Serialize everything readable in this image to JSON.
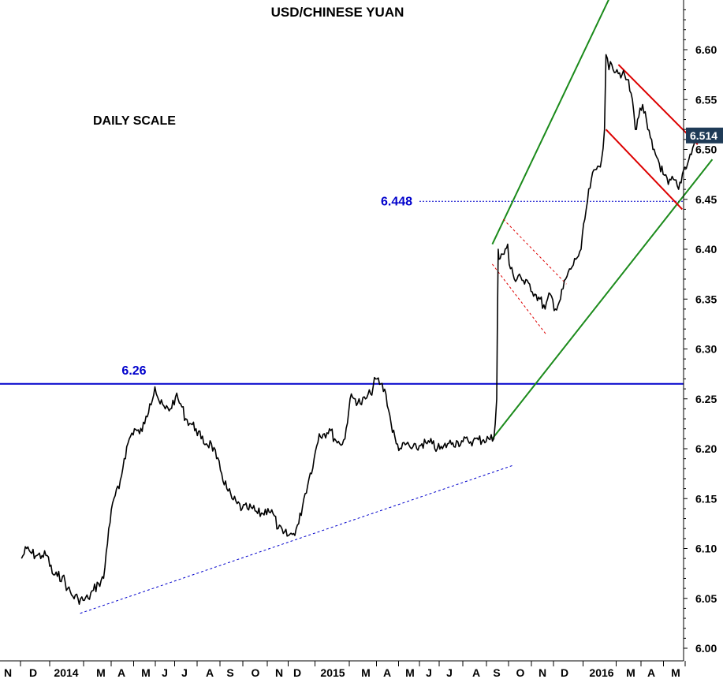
{
  "chart_data": {
    "type": "line",
    "title": "USD/CHINESE YUAN",
    "annotation": "DAILY SCALE",
    "y_axis": {
      "side": "right",
      "range": [
        5.995,
        6.67
      ],
      "ticks": [
        "6.00",
        "6.05",
        "6.10",
        "6.15",
        "6.20",
        "6.25",
        "6.30",
        "6.35",
        "6.40",
        "6.45",
        "6.50",
        "6.55",
        "6.60"
      ]
    },
    "x_axis": {
      "tick_labels": [
        "N",
        "D",
        "2014",
        "M",
        "A",
        "M",
        "J",
        "J",
        "A",
        "S",
        "O",
        "N",
        "D",
        "2015",
        "M",
        "A",
        "M",
        "J",
        "J",
        "A",
        "S",
        "O",
        "N",
        "D",
        "2016",
        "M",
        "A",
        "M"
      ]
    },
    "last_value": {
      "label": "6.514",
      "value": 6.514,
      "color": "#1f3b57"
    },
    "levels": [
      {
        "label": "6.26",
        "value": 6.265,
        "style": "solid",
        "color": "#0000cc"
      },
      {
        "label": "6.448",
        "value": 6.448,
        "style": "dotted",
        "color": "#0000cc"
      }
    ],
    "series": [
      {
        "color": "#000000",
        "points": [
          [
            "2013-11-01",
            6.09
          ],
          [
            "2013-11-08",
            6.1
          ],
          [
            "2013-11-15",
            6.095
          ],
          [
            "2013-11-22",
            6.093
          ],
          [
            "2013-11-29",
            6.093
          ],
          [
            "2013-12-06",
            6.093
          ],
          [
            "2013-12-13",
            6.075
          ],
          [
            "2013-12-20",
            6.072
          ],
          [
            "2013-12-27",
            6.072
          ],
          [
            "2014-01-03",
            6.06
          ],
          [
            "2014-01-10",
            6.052
          ],
          [
            "2014-01-17",
            6.05
          ],
          [
            "2014-01-24",
            6.048
          ],
          [
            "2014-01-31",
            6.05
          ],
          [
            "2014-02-07",
            6.058
          ],
          [
            "2014-02-14",
            6.065
          ],
          [
            "2014-02-21",
            6.07
          ],
          [
            "2014-02-28",
            6.12
          ],
          [
            "2014-03-07",
            6.15
          ],
          [
            "2014-03-14",
            6.16
          ],
          [
            "2014-03-21",
            6.19
          ],
          [
            "2014-03-28",
            6.21
          ],
          [
            "2014-04-04",
            6.22
          ],
          [
            "2014-04-11",
            6.215
          ],
          [
            "2014-04-18",
            6.225
          ],
          [
            "2014-04-25",
            6.245
          ],
          [
            "2014-05-02",
            6.262
          ],
          [
            "2014-05-09",
            6.245
          ],
          [
            "2014-05-16",
            6.24
          ],
          [
            "2014-05-23",
            6.24
          ],
          [
            "2014-05-30",
            6.252
          ],
          [
            "2014-06-06",
            6.245
          ],
          [
            "2014-06-13",
            6.23
          ],
          [
            "2014-06-20",
            6.225
          ],
          [
            "2014-06-27",
            6.22
          ],
          [
            "2014-07-04",
            6.21
          ],
          [
            "2014-07-11",
            6.205
          ],
          [
            "2014-07-18",
            6.205
          ],
          [
            "2014-07-25",
            6.19
          ],
          [
            "2014-08-01",
            6.175
          ],
          [
            "2014-08-08",
            6.16
          ],
          [
            "2014-08-15",
            6.15
          ],
          [
            "2014-08-22",
            6.145
          ],
          [
            "2014-08-29",
            6.14
          ],
          [
            "2014-09-05",
            6.14
          ],
          [
            "2014-09-12",
            6.14
          ],
          [
            "2014-09-19",
            6.135
          ],
          [
            "2014-09-26",
            6.135
          ],
          [
            "2014-10-03",
            6.14
          ],
          [
            "2014-10-10",
            6.135
          ],
          [
            "2014-10-17",
            6.12
          ],
          [
            "2014-10-24",
            6.115
          ],
          [
            "2014-10-31",
            6.113
          ],
          [
            "2014-11-07",
            6.115
          ],
          [
            "2014-11-14",
            6.125
          ],
          [
            "2014-11-21",
            6.15
          ],
          [
            "2014-11-28",
            6.17
          ],
          [
            "2014-12-05",
            6.19
          ],
          [
            "2014-12-12",
            6.215
          ],
          [
            "2014-12-19",
            6.215
          ],
          [
            "2014-12-26",
            6.22
          ],
          [
            "2015-01-02",
            6.21
          ],
          [
            "2015-01-09",
            6.205
          ],
          [
            "2015-01-16",
            6.21
          ],
          [
            "2015-01-23",
            6.25
          ],
          [
            "2015-01-30",
            6.25
          ],
          [
            "2015-02-06",
            6.245
          ],
          [
            "2015-02-13",
            6.25
          ],
          [
            "2015-02-20",
            6.255
          ],
          [
            "2015-02-27",
            6.27
          ],
          [
            "2015-03-06",
            6.265
          ],
          [
            "2015-03-13",
            6.255
          ],
          [
            "2015-03-20",
            6.225
          ],
          [
            "2015-03-27",
            6.205
          ],
          [
            "2015-04-03",
            6.2
          ],
          [
            "2015-04-10",
            6.205
          ],
          [
            "2015-04-17",
            6.2
          ],
          [
            "2015-04-24",
            6.2
          ],
          [
            "2015-05-01",
            6.205
          ],
          [
            "2015-05-08",
            6.205
          ],
          [
            "2015-05-15",
            6.205
          ],
          [
            "2015-05-22",
            6.2
          ],
          [
            "2015-05-29",
            6.2
          ],
          [
            "2015-06-05",
            6.205
          ],
          [
            "2015-06-12",
            6.206
          ],
          [
            "2015-06-19",
            6.207
          ],
          [
            "2015-06-26",
            6.207
          ],
          [
            "2015-07-03",
            6.208
          ],
          [
            "2015-07-10",
            6.208
          ],
          [
            "2015-07-17",
            6.209
          ],
          [
            "2015-07-24",
            6.209
          ],
          [
            "2015-07-31",
            6.21
          ],
          [
            "2015-08-07",
            6.21
          ],
          [
            "2015-08-11",
            6.25
          ],
          [
            "2015-08-12",
            6.33
          ],
          [
            "2015-08-13",
            6.4
          ],
          [
            "2015-08-14",
            6.39
          ],
          [
            "2015-08-19",
            6.395
          ],
          [
            "2015-08-21",
            6.395
          ],
          [
            "2015-08-26",
            6.405
          ],
          [
            "2015-08-28",
            6.385
          ],
          [
            "2015-09-04",
            6.37
          ],
          [
            "2015-09-11",
            6.375
          ],
          [
            "2015-09-18",
            6.365
          ],
          [
            "2015-09-25",
            6.365
          ],
          [
            "2015-10-02",
            6.355
          ],
          [
            "2015-10-09",
            6.35
          ],
          [
            "2015-10-16",
            6.34
          ],
          [
            "2015-10-23",
            6.355
          ],
          [
            "2015-10-30",
            6.34
          ],
          [
            "2015-11-06",
            6.35
          ],
          [
            "2015-11-13",
            6.37
          ],
          [
            "2015-11-20",
            6.38
          ],
          [
            "2015-11-27",
            6.39
          ],
          [
            "2015-12-04",
            6.4
          ],
          [
            "2015-12-11",
            6.44
          ],
          [
            "2015-12-18",
            6.47
          ],
          [
            "2015-12-25",
            6.48
          ],
          [
            "2016-01-01",
            6.49
          ],
          [
            "2016-01-05",
            6.52
          ],
          [
            "2016-01-07",
            6.595
          ],
          [
            "2016-01-11",
            6.58
          ],
          [
            "2016-01-15",
            6.585
          ],
          [
            "2016-01-22",
            6.58
          ],
          [
            "2016-01-29",
            6.575
          ],
          [
            "2016-02-05",
            6.57
          ],
          [
            "2016-02-12",
            6.55
          ],
          [
            "2016-02-16",
            6.52
          ],
          [
            "2016-02-19",
            6.53
          ],
          [
            "2016-02-26",
            6.545
          ],
          [
            "2016-03-04",
            6.52
          ],
          [
            "2016-03-11",
            6.5
          ],
          [
            "2016-03-18",
            6.49
          ],
          [
            "2016-03-25",
            6.475
          ],
          [
            "2016-04-01",
            6.465
          ],
          [
            "2016-04-08",
            6.47
          ],
          [
            "2016-04-15",
            6.46
          ],
          [
            "2016-04-22",
            6.48
          ],
          [
            "2016-04-29",
            6.49
          ],
          [
            "2016-05-06",
            6.505
          ],
          [
            "2016-05-11",
            6.514
          ]
        ]
      }
    ],
    "trendlines": [
      {
        "type": "support",
        "color": "#0000cc",
        "style": "dotted",
        "from": [
          "2014-01-20",
          6.035
        ],
        "to": [
          "2015-09-01",
          6.183
        ]
      },
      {
        "type": "channel-upper",
        "color": "#1a8a1a",
        "style": "solid",
        "from": [
          "2015-08-05",
          6.405
        ],
        "to": [
          "2016-02-12",
          6.7
        ]
      },
      {
        "type": "channel-lower",
        "color": "#1a8a1a",
        "style": "solid",
        "from": [
          "2015-08-05",
          6.21
        ],
        "to": [
          "2016-05-31",
          6.49
        ]
      },
      {
        "type": "flag-upper",
        "color": "#dd0000",
        "style": "solid",
        "from": [
          "2016-01-24",
          6.585
        ],
        "to": [
          "2016-05-11",
          6.505
        ]
      },
      {
        "type": "flag-lower",
        "color": "#dd0000",
        "style": "solid",
        "from": [
          "2016-01-07",
          6.52
        ],
        "to": [
          "2016-04-20",
          6.44
        ]
      },
      {
        "type": "pullback-upper",
        "color": "#dd0000",
        "style": "dotted",
        "from": [
          "2015-08-20",
          6.43
        ],
        "to": [
          "2015-11-14",
          6.365
        ]
      },
      {
        "type": "pullback-lower",
        "color": "#dd0000",
        "style": "dotted",
        "from": [
          "2015-08-05",
          6.385
        ],
        "to": [
          "2015-10-17",
          6.315
        ]
      }
    ]
  }
}
